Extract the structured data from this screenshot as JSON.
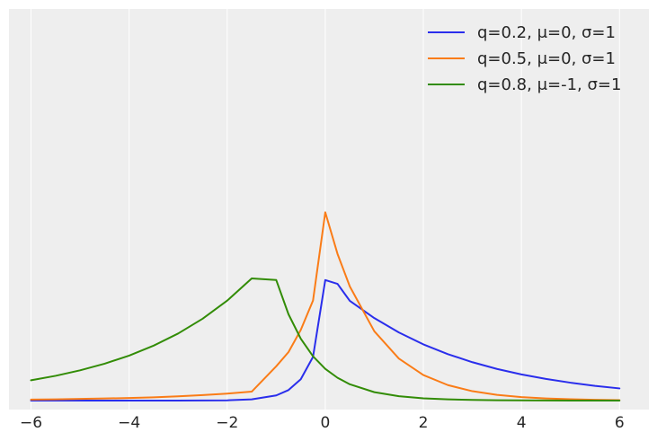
{
  "chart_data": {
    "type": "line",
    "title": "",
    "xlabel": "",
    "ylabel": "",
    "xlim": [
      -6.45,
      6.6
    ],
    "ylim": [
      -0.012,
      0.52
    ],
    "xticks": [
      -6,
      -4,
      -2,
      0,
      2,
      4,
      6
    ],
    "xtick_labels": [
      "−6",
      "−4",
      "−2",
      "0",
      "2",
      "4",
      "6"
    ],
    "grid": "vertical",
    "legend_position": "top-right",
    "background_color": "#eeeeee",
    "grid_color": "#ffffff",
    "x": [
      -6,
      -5.5,
      -5,
      -4.5,
      -4,
      -3.5,
      -3,
      -2.5,
      -2,
      -1.5,
      -1,
      -0.75,
      -0.5,
      -0.25,
      0,
      0.25,
      0.5,
      1,
      1.5,
      2,
      2.5,
      3,
      3.5,
      4,
      4.5,
      5,
      5.5,
      6
    ],
    "series": [
      {
        "name": "q=0.2, μ=0, σ=1",
        "color": "#2a2eec",
        "values": [
          0.0,
          0.0,
          0.0,
          0.0,
          0.0,
          0.0,
          0.0,
          0.0001,
          0.0003,
          0.0016,
          0.0068,
          0.0139,
          0.0283,
          0.0579,
          0.16,
          0.1549,
          0.1324,
          0.1095,
          0.0904,
          0.0746,
          0.0616,
          0.0509,
          0.042,
          0.0347,
          0.0287,
          0.0237,
          0.0195,
          0.0161
        ]
      },
      {
        "name": "q=0.5, μ=0, σ=1",
        "color": "#fa7c17",
        "values": [
          0.0012,
          0.0016,
          0.0021,
          0.0027,
          0.0034,
          0.0043,
          0.0056,
          0.0072,
          0.0092,
          0.0118,
          0.0455,
          0.0643,
          0.0937,
          0.1328,
          0.25,
          0.1947,
          0.1516,
          0.092,
          0.0558,
          0.0338,
          0.0205,
          0.0124,
          0.0075,
          0.0046,
          0.0028,
          0.0017,
          0.001,
          0.0006
        ]
      },
      {
        "name": "q=0.8, μ=-1, σ=1",
        "color": "#328c06",
        "values": [
          0.0269,
          0.0328,
          0.0401,
          0.0489,
          0.0597,
          0.0729,
          0.089,
          0.1087,
          0.1327,
          0.1621,
          0.16,
          0.1146,
          0.0821,
          0.0588,
          0.0421,
          0.0302,
          0.0216,
          0.0111,
          0.0057,
          0.0029,
          0.0015,
          0.0008,
          0.0004,
          0.0002,
          0.0001,
          0.0,
          0.0,
          0.0
        ]
      }
    ]
  }
}
